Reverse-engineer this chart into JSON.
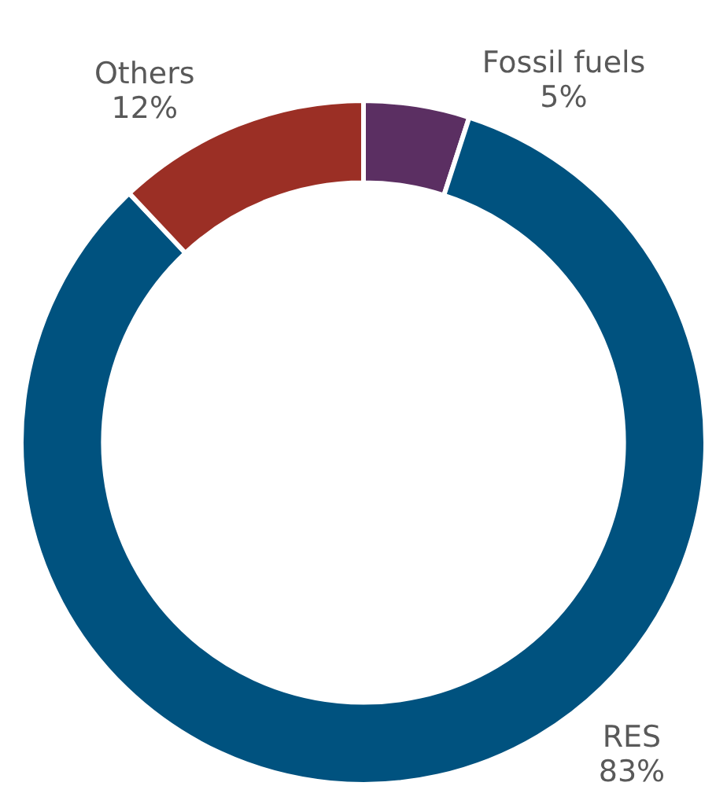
{
  "chart_data": {
    "type": "donut",
    "categories": [
      "Fossil fuels",
      "RES",
      "Others"
    ],
    "values": [
      5,
      83,
      12
    ],
    "colors": [
      "#5b2f62",
      "#00527f",
      "#9b2f25"
    ],
    "value_labels": [
      "5%",
      "83%",
      "12%"
    ]
  }
}
